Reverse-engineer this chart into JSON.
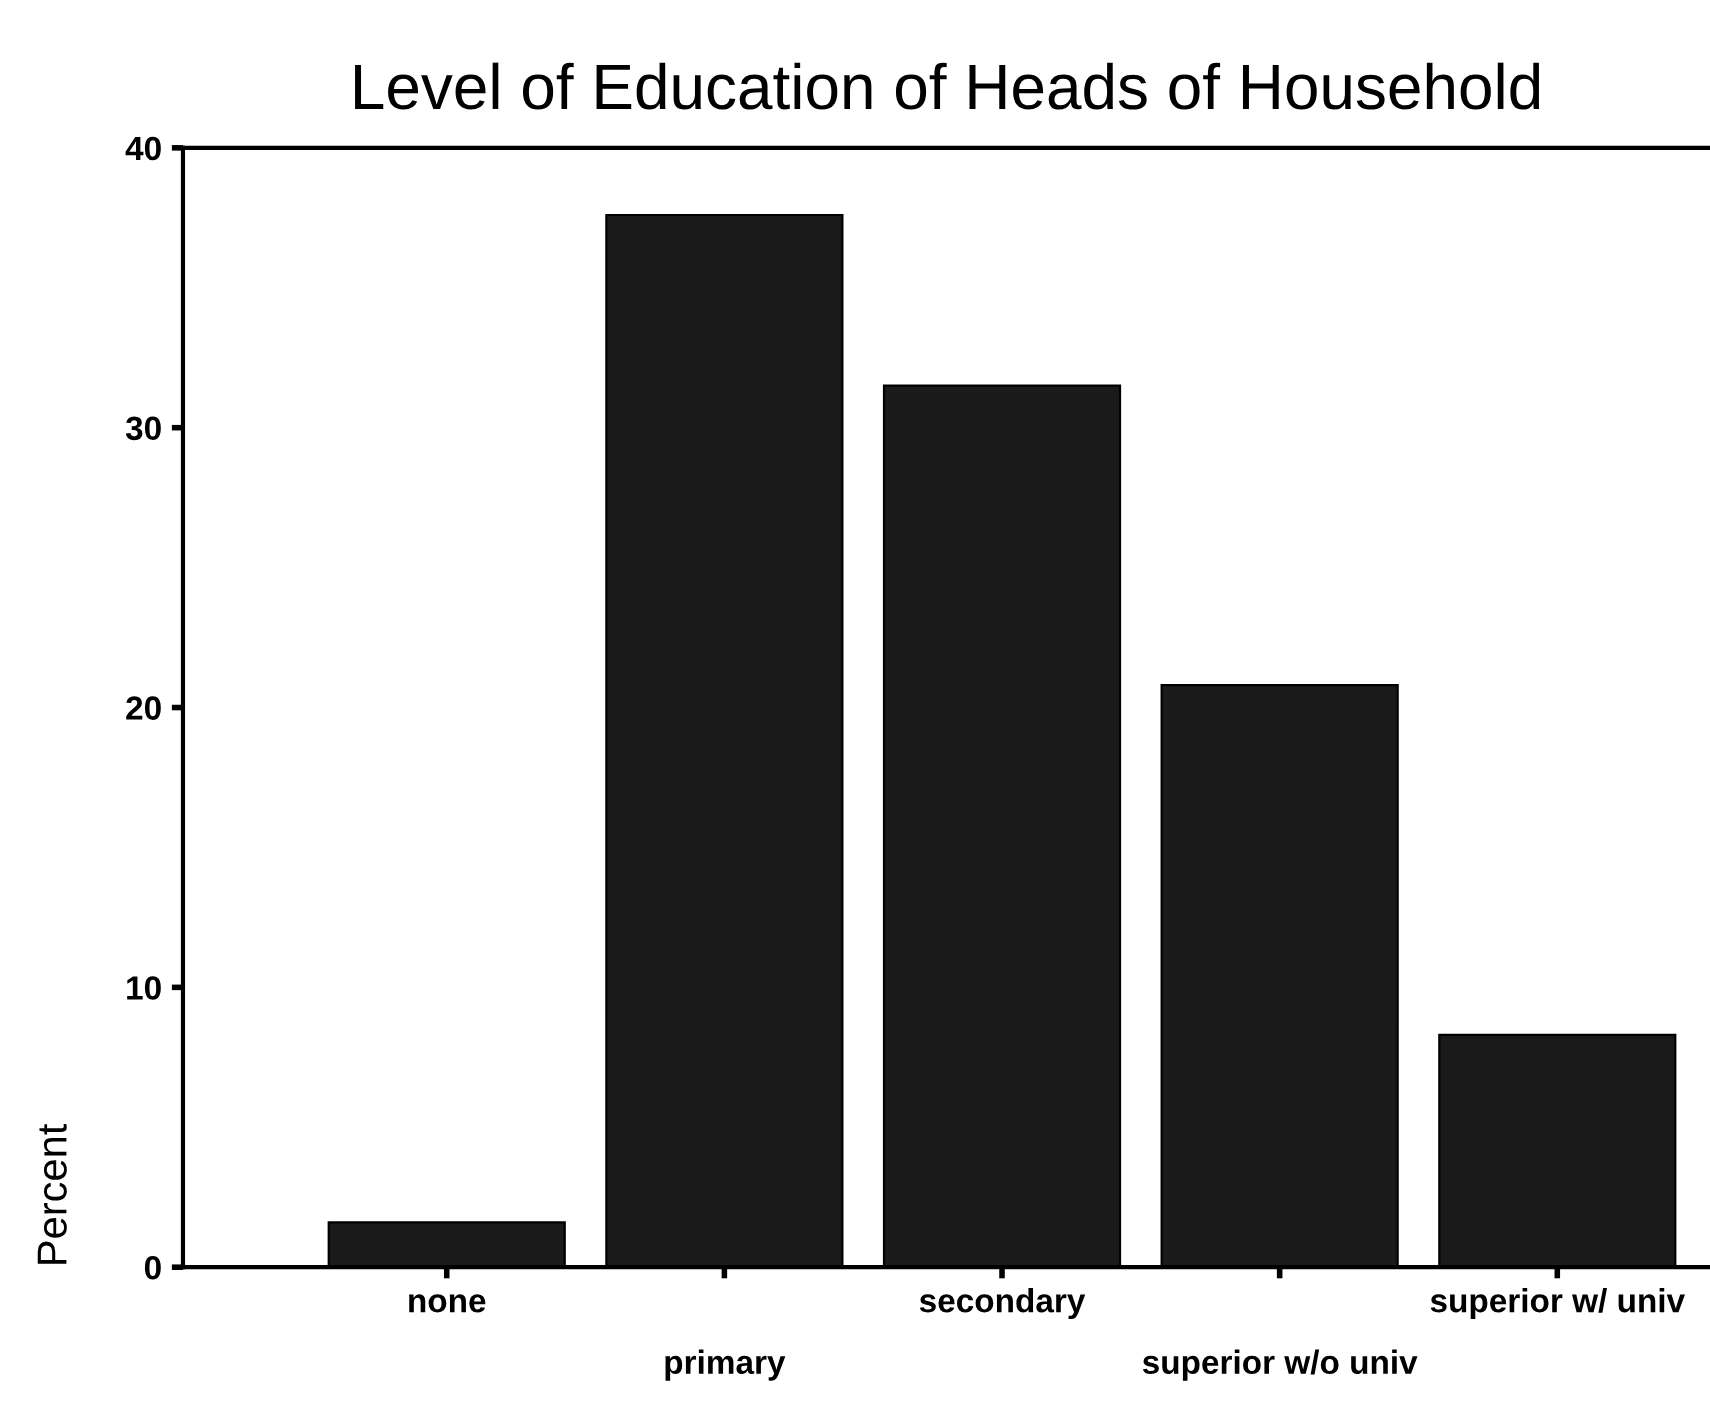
{
  "chart_data": {
    "type": "bar",
    "title": "Level of Education of Heads of Household",
    "ylabel": "Percent",
    "categories": [
      "none",
      "primary",
      "secondary",
      "superior w/o univ",
      "superior w/ univ"
    ],
    "values": [
      1.6,
      37.6,
      31.5,
      20.8,
      8.3
    ],
    "color": "#1a1a1a",
    "ylim": [
      0,
      40
    ],
    "yticks": [
      0,
      10,
      20,
      30,
      40
    ],
    "grid": false
  }
}
